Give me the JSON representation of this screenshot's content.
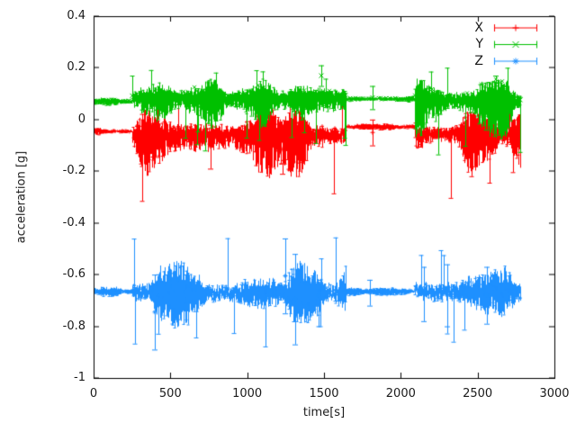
{
  "chart_data": {
    "type": "line",
    "plot_style": "errorbars-with-points",
    "title": "",
    "xlabel": "time[s]",
    "ylabel": "acceleration [g]",
    "xlim": [
      0,
      3000
    ],
    "ylim": [
      -1,
      0.4
    ],
    "xticks": [
      "0",
      "500",
      "1000",
      "1500",
      "2000",
      "2500",
      "3000"
    ],
    "yticks": [
      "-1",
      "-0.8",
      "-0.6",
      "-0.4",
      "-0.2",
      "0",
      "0.2",
      "0.4"
    ],
    "grid": false,
    "legend_position": "top-right-inside",
    "background_color": "#ffffff",
    "border_color": "#000000",
    "text_color": "#1a1a1a",
    "t_end": 2780,
    "series": [
      {
        "name": "X",
        "color": "#ff0000",
        "marker": "plus",
        "segments": [
          {
            "t0": 0,
            "t1": 250,
            "center": -0.045,
            "up": 0.01,
            "down": 0.01
          },
          {
            "t0": 250,
            "t1": 1640,
            "center": -0.055,
            "up": 0.045,
            "down": 0.085
          },
          {
            "t0": 1640,
            "t1": 2090,
            "center": -0.028,
            "up": 0.008,
            "down": 0.008
          },
          {
            "t0": 2090,
            "t1": 2780,
            "center": -0.05,
            "up": 0.04,
            "down": 0.075
          }
        ],
        "outliers": [
          {
            "t": 1280,
            "y_top": 0.09,
            "y_bot": -0.12
          },
          {
            "t": 1230,
            "y_top": -0.02,
            "y_bot": -0.21
          },
          {
            "t": 760,
            "y_top": -0.02,
            "y_bot": -0.19
          },
          {
            "t": 1815,
            "y_top": 0.0,
            "y_bot": -0.1
          }
        ]
      },
      {
        "name": "Y",
        "color": "#00c000",
        "marker": "cross",
        "segments": [
          {
            "t0": 0,
            "t1": 250,
            "center": 0.07,
            "up": 0.01,
            "down": 0.01
          },
          {
            "t0": 250,
            "t1": 1640,
            "center": 0.085,
            "up": 0.035,
            "down": 0.06
          },
          {
            "t0": 1640,
            "t1": 2090,
            "center": 0.08,
            "up": 0.008,
            "down": 0.008
          },
          {
            "t0": 2090,
            "t1": 2780,
            "center": 0.08,
            "up": 0.038,
            "down": 0.075
          }
        ],
        "outliers": [
          {
            "t": 1480,
            "y_top": 0.21,
            "y_bot": 0.13
          },
          {
            "t": 1815,
            "y_top": 0.13,
            "y_bot": 0.04
          },
          {
            "t": 2620,
            "y_top": 0.17,
            "y_bot": 0.1
          }
        ]
      },
      {
        "name": "Z",
        "color": "#1e90ff",
        "marker": "asterisk",
        "segments": [
          {
            "t0": 0,
            "t1": 250,
            "center": -0.665,
            "up": 0.013,
            "down": 0.013
          },
          {
            "t0": 250,
            "t1": 1640,
            "center": -0.67,
            "up": 0.06,
            "down": 0.065
          },
          {
            "t0": 1640,
            "t1": 2090,
            "center": -0.665,
            "up": 0.01,
            "down": 0.01
          },
          {
            "t0": 2090,
            "t1": 2780,
            "center": -0.665,
            "up": 0.058,
            "down": 0.062
          }
        ],
        "outliers": [
          {
            "t": 400,
            "y_top": -0.6,
            "y_bot": -0.89
          },
          {
            "t": 1250,
            "y_top": -0.46,
            "y_bot": -0.75
          },
          {
            "t": 1310,
            "y_top": -0.52,
            "y_bot": -0.87
          },
          {
            "t": 1800,
            "y_top": -0.62,
            "y_bot": -0.72
          },
          {
            "t": 2150,
            "y_top": -0.57,
            "y_bot": -0.78
          },
          {
            "t": 2300,
            "y_top": -0.56,
            "y_bot": -0.8
          },
          {
            "t": 2560,
            "y_top": -0.57,
            "y_bot": -0.79
          }
        ]
      }
    ]
  }
}
